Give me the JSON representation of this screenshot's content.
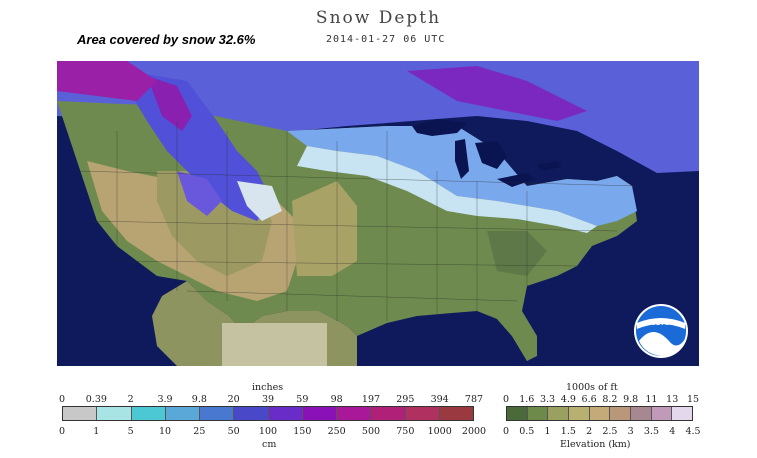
{
  "title": "Snow Depth",
  "datetime": "2014-01-27 06 UTC",
  "coverage": "Area covered by snow 32.6%",
  "logo_text": "NOAA",
  "snow_legend": {
    "unit_top": "inches",
    "unit_bottom": "cm",
    "inches": [
      "0",
      "0.39",
      "2",
      "3.9",
      "9.8",
      "20",
      "39",
      "59",
      "98",
      "197",
      "295",
      "394",
      "787"
    ],
    "cm": [
      "0",
      "1",
      "5",
      "10",
      "25",
      "50",
      "100",
      "150",
      "250",
      "500",
      "750",
      "1000",
      "2000"
    ],
    "colors": [
      "#c8c8c8",
      "#a8e4e4",
      "#4cc8d4",
      "#5aa8d8",
      "#4878d0",
      "#4848c8",
      "#6a2cc8",
      "#8a10b8",
      "#a81898",
      "#b02078",
      "#b03060",
      "#9a3a40"
    ]
  },
  "elevation_legend": {
    "unit_top": "1000s of ft",
    "unit_bottom": "Elevation (km)",
    "feet": [
      "0",
      "1.6",
      "3.3",
      "4.9",
      "6.6",
      "8.2",
      "9.8",
      "11",
      "13",
      "15"
    ],
    "km": [
      "0",
      "0.5",
      "1",
      "1.5",
      "2",
      "2.5",
      "3",
      "3.5",
      "4",
      "4.5"
    ],
    "colors": [
      "#4a6a3a",
      "#6e8a4a",
      "#9aa060",
      "#b8b070",
      "#c4aa78",
      "#b89878",
      "#a88890",
      "#c09ab8",
      "#e4d8ec"
    ]
  },
  "map_colors": {
    "ocean": "#0e1a5c",
    "land_low": "#5e7a48",
    "land_mid": "#8e9a5e",
    "land_high": "#b0a070",
    "snow_light": "#c8e0f0",
    "snow_mid": "#6a90e8",
    "snow_deep": "#5048d8",
    "snow_deepest": "#8a20b0",
    "water": "#0a1450"
  }
}
